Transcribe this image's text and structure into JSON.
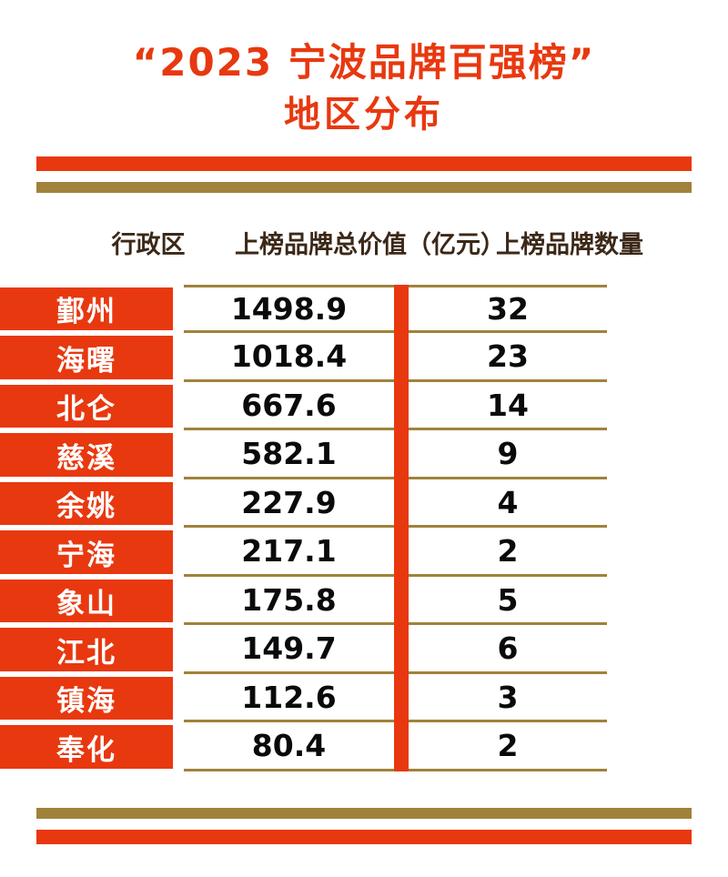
{
  "title": {
    "line1": "“2023 宁波品牌百强榜”",
    "line2": "地区分布"
  },
  "colors": {
    "red": "#e8380f",
    "gold": "#a1823a",
    "heading_text": "#3b2817",
    "number_text": "#0a0a0a",
    "background": "#ffffff"
  },
  "table": {
    "headers": [
      "行政区",
      "上榜品牌总价值（亿元）",
      "上榜品牌数量"
    ],
    "rows": [
      {
        "region": "鄞州",
        "value": "1498.9",
        "count": "32"
      },
      {
        "region": "海曙",
        "value": "1018.4",
        "count": "23"
      },
      {
        "region": "北仑",
        "value": "667.6",
        "count": "14"
      },
      {
        "region": "慈溪",
        "value": "582.1",
        "count": "9"
      },
      {
        "region": "余姚",
        "value": "227.9",
        "count": "4"
      },
      {
        "region": "宁海",
        "value": "217.1",
        "count": "2"
      },
      {
        "region": "象山",
        "value": "175.8",
        "count": "5"
      },
      {
        "region": "江北",
        "value": "149.7",
        "count": "6"
      },
      {
        "region": "镇海",
        "value": "112.6",
        "count": "3"
      },
      {
        "region": "奉化",
        "value": "80.4",
        "count": "2"
      }
    ]
  },
  "chart_data": {
    "type": "table",
    "title": "“2023 宁波品牌百强榜” 地区分布",
    "columns": [
      "行政区",
      "上榜品牌总价值（亿元）",
      "上榜品牌数量"
    ],
    "rows": [
      [
        "鄞州",
        1498.9,
        32
      ],
      [
        "海曙",
        1018.4,
        23
      ],
      [
        "北仑",
        667.6,
        14
      ],
      [
        "慈溪",
        582.1,
        9
      ],
      [
        "余姚",
        227.9,
        4
      ],
      [
        "宁海",
        217.1,
        2
      ],
      [
        "象山",
        175.8,
        5
      ],
      [
        "江北",
        149.7,
        6
      ],
      [
        "镇海",
        112.6,
        3
      ],
      [
        "奉化",
        80.4,
        2
      ]
    ]
  }
}
